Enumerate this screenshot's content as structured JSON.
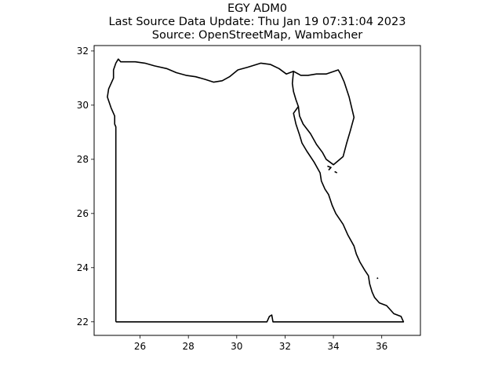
{
  "title": {
    "line1": "EGY ADM0",
    "line2": "Last Source Data Update: Thu Jan 19 07:31:04 2023",
    "line3": "Source: OpenStreetMap, Wambacher"
  },
  "colors": {
    "outline": "#000000",
    "background": "#ffffff",
    "axes": "#000000"
  },
  "chart_data": {
    "type": "map",
    "region": "EGY ADM0",
    "xlim": [
      24.1,
      37.6
    ],
    "ylim": [
      21.5,
      32.2
    ],
    "xticks": [
      26,
      28,
      30,
      32,
      34,
      36
    ],
    "yticks": [
      22,
      24,
      26,
      28,
      30,
      32
    ],
    "grid": false,
    "boundary": [
      [
        25.0,
        22.0
      ],
      [
        31.25,
        22.0
      ],
      [
        31.35,
        22.2
      ],
      [
        31.45,
        22.25
      ],
      [
        31.5,
        22.0
      ],
      [
        36.9,
        22.0
      ],
      [
        36.8,
        22.2
      ],
      [
        36.5,
        22.3
      ],
      [
        36.2,
        22.6
      ],
      [
        35.9,
        22.7
      ],
      [
        35.7,
        22.9
      ],
      [
        35.6,
        23.1
      ],
      [
        35.5,
        23.4
      ],
      [
        35.45,
        23.7
      ],
      [
        35.3,
        23.9
      ],
      [
        35.1,
        24.2
      ],
      [
        34.95,
        24.5
      ],
      [
        34.85,
        24.8
      ],
      [
        34.6,
        25.2
      ],
      [
        34.4,
        25.6
      ],
      [
        34.1,
        26.0
      ],
      [
        33.95,
        26.3
      ],
      [
        33.8,
        26.7
      ],
      [
        33.65,
        26.9
      ],
      [
        33.5,
        27.2
      ],
      [
        33.45,
        27.5
      ],
      [
        33.2,
        27.9
      ],
      [
        32.9,
        28.3
      ],
      [
        32.7,
        28.6
      ],
      [
        32.6,
        28.9
      ],
      [
        32.45,
        29.3
      ],
      [
        32.35,
        29.7
      ],
      [
        32.55,
        29.95
      ],
      [
        32.45,
        30.2
      ],
      [
        32.35,
        30.5
      ],
      [
        32.3,
        30.8
      ],
      [
        32.35,
        31.25
      ],
      [
        32.05,
        31.15
      ],
      [
        31.75,
        31.35
      ],
      [
        31.4,
        31.5
      ],
      [
        31.0,
        31.55
      ],
      [
        30.45,
        31.4
      ],
      [
        30.05,
        31.3
      ],
      [
        29.7,
        31.05
      ],
      [
        29.4,
        30.9
      ],
      [
        29.05,
        30.85
      ],
      [
        28.7,
        30.95
      ],
      [
        28.3,
        31.05
      ],
      [
        27.9,
        31.1
      ],
      [
        27.5,
        31.2
      ],
      [
        27.1,
        31.35
      ],
      [
        26.6,
        31.45
      ],
      [
        26.2,
        31.55
      ],
      [
        25.8,
        31.6
      ],
      [
        25.5,
        31.6
      ],
      [
        25.2,
        31.6
      ],
      [
        25.1,
        31.7
      ],
      [
        25.0,
        31.55
      ],
      [
        24.9,
        31.3
      ],
      [
        24.9,
        31.0
      ],
      [
        24.7,
        30.6
      ],
      [
        24.65,
        30.3
      ],
      [
        24.8,
        29.9
      ],
      [
        24.95,
        29.6
      ],
      [
        24.95,
        29.3
      ],
      [
        25.0,
        29.2
      ],
      [
        25.0,
        22.0
      ]
    ],
    "sinai": [
      [
        32.35,
        31.25
      ],
      [
        32.65,
        31.1
      ],
      [
        32.95,
        31.1
      ],
      [
        33.3,
        31.15
      ],
      [
        33.7,
        31.15
      ],
      [
        34.2,
        31.3
      ],
      [
        34.3,
        31.15
      ],
      [
        34.45,
        30.85
      ],
      [
        34.65,
        30.3
      ],
      [
        34.85,
        29.55
      ],
      [
        34.7,
        29.05
      ],
      [
        34.55,
        28.6
      ],
      [
        34.4,
        28.1
      ],
      [
        34.2,
        27.95
      ],
      [
        34.0,
        27.8
      ],
      [
        33.7,
        28.0
      ],
      [
        33.55,
        28.25
      ],
      [
        33.3,
        28.55
      ],
      [
        33.05,
        28.95
      ],
      [
        32.75,
        29.3
      ],
      [
        32.6,
        29.6
      ],
      [
        32.55,
        29.95
      ]
    ],
    "islands": [
      [
        [
          33.75,
          27.75
        ],
        [
          33.9,
          27.7
        ],
        [
          33.8,
          27.6
        ]
      ],
      [
        [
          34.05,
          27.55
        ],
        [
          34.15,
          27.5
        ]
      ],
      [
        [
          35.8,
          23.6
        ],
        [
          35.85,
          23.62
        ]
      ]
    ]
  }
}
